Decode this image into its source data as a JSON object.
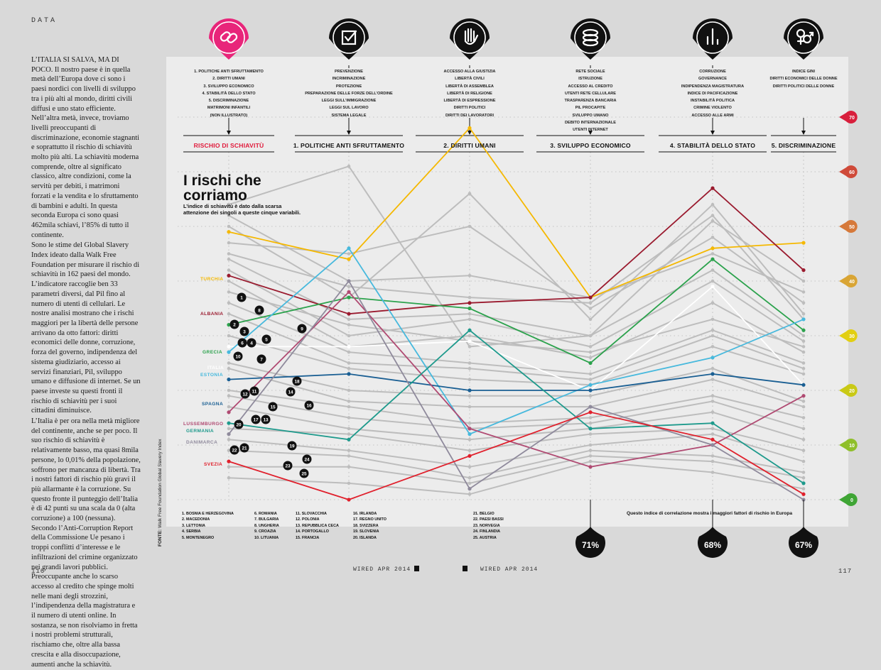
{
  "page": {
    "section_tag": "DATA",
    "page_left": "116",
    "page_right": "117",
    "footer_left": "WIRED APR 2014",
    "footer_right": "WIRED APR 2014",
    "source_label": "FONTE:",
    "source_text": "Walk Free Foundation Global Slavery Index"
  },
  "sidebar": {
    "paragraphs": [
      "L’ITALIA SI SALVA, MA DI POCO. Il nostro paese è in quella metà dell’Europa dove ci sono i paesi nordici con livelli di sviluppo tra i più alti al mondo, diritti civili diffusi e uno stato efficiente. Nell’altra metà, invece, troviamo livelli preoccupanti di discriminazione, economie stagnanti e soprattutto il rischio di schiavitù molto più alti. La schiavitù moderna comprende, oltre al significato classico, altre condizioni, come la servitù per debiti, i matrimoni forzati e la vendita e lo sfruttamento di bambini e adulti. In questa seconda Europa ci sono quasi 462mila schiavi, l’85% di tutto il continente.",
      "Sono le stime del Global Slavery Index ideato dalla Walk Free Foundation per misurare il rischio di schiavitù in 162 paesi del mondo. L’indicatore raccoglie ben 33 parametri diversi, dal Pil fino al numero di utenti di cellulari. Le nostre analisi mostrano che i rischi maggiori per la libertà delle persone arrivano da otto fattori: diritti economici delle donne, corruzione, forza del governo, indipendenza del sistema giudiziario, accesso ai servizi finanziari, Pil, sviluppo umano e diffusione di internet. Se un paese investe su questi fronti il rischio di schiavitù per i suoi cittadini diminuisce.",
      "L’Italia è per ora nella metà migliore del continente, anche se per poco. Il suo rischio di schiavitù è relativamente basso, ma quasi 8mila persone, lo 0,01% della popolazione, soffrono per mancanza di libertà. Tra i nostri fattori di rischio più gravi il più allarmante è la corruzione. Su questo fronte il punteggio dell’Italia è di 42 punti su una scala da 0 (alta corruzione) a 100 (nessuna). Secondo l’Anti-Corruption Report della Commissione Ue pesano i troppi conflitti d’interesse e le infiltrazioni del crimine organizzato nei grandi lavori pubblici. Preoccupante anche lo scarso accesso al credito che spinge molti nelle mani degli strozzini, l’indipendenza della magistratura e il numero di utenti online. In sostanza, se non risolviamo in fretta i nostri problemi strutturali, rischiamo che, oltre alla bassa crescita e alla disoccupazione, aumenti anche la schiavitù."
    ]
  },
  "chart_data": {
    "type": "line",
    "title": "I rischi che corriamo",
    "subtitle": "L’indice di schiavitù è dato dalla scarsa attenzione dei singoli a queste cinque variabili.",
    "note": "Questo indice di correlazione mostra i maggiori fattori di rischio in Europa",
    "ylim": [
      0,
      70
    ],
    "y_ticks": [
      "0",
      "10",
      "20",
      "30",
      "40",
      "50",
      "60",
      "70"
    ],
    "y_tick_colors": [
      "#3fa535",
      "#8fbf2a",
      "#c9c916",
      "#e2cf12",
      "#d9a535",
      "#d6793a",
      "#cf4a39",
      "#d81f3c"
    ],
    "categories": [
      "RISCHIO DI SCHIAVITÙ",
      "1. POLITICHE ANTI SFRUTTAMENTO",
      "2. DIRITTI UMANI",
      "3. SVILUPPO ECONOMICO",
      "4. STABILITÀ DELLO STATO",
      "5. DISCRIMINAZIONE"
    ],
    "factor_lists": [
      [
        "1. POLITICHE ANTI SFRUTTAMENTO",
        "2. DIRITTI UMANI",
        "3. SVILUPPO ECONOMICO",
        "4. STABILITÀ DELLO STATO",
        "5. DISCRIMINAZIONE",
        "MATRIMONI INFANTILI",
        "(NON ILLUSTRATO)"
      ],
      [
        "PREVENZIONE",
        "INCRIMINAZIONE",
        "PROTEZIONE",
        "PREPARAZIONE DELLE FORZE DELL’ORDINE",
        "LEGGI SULL’IMMIGRAZIONE",
        "LEGGI SUL LAVORO",
        "SISTEMA LEGALE"
      ],
      [
        "ACCESSO ALLA GIUSTIZIA",
        "LIBERTÀ CIVILI",
        "LIBERTÀ DI ASSEMBLEA",
        "LIBERTÀ DI RELIGIONE",
        "LIBERTÀ DI ESPRESSIONE",
        "DIRITTI POLITICI",
        "DIRITTI DEI LAVORATORI"
      ],
      [
        "RETE SOCIALE",
        "ISTRUZIONE",
        "ACCESSO AL CREDITO",
        "UTENTI RETE CELLULARE",
        "TRASPARENZA BANCARIA",
        "PIL PROCAPITE",
        "SVILUPPO UMANO",
        "DEBITO INTERNAZIONALE",
        "UTENTI INTERNET"
      ],
      [
        "CORRUZIONE",
        "GOVERNANCE",
        "INDIPENDENZA MAGISTRATURA",
        "INDICE DI PACIFICAZIONE",
        "INSTABILITÀ POLITICA",
        "CRIMINE VIOLENTO",
        "ACCESSO ALLE ARMI"
      ],
      [
        "INDICE GINI",
        "DIRITTI ECONOMICI DELLE DONNE",
        "DIRITTI POLITICI DELLE DONNE"
      ]
    ],
    "icons": [
      "chain-link-icon",
      "checkbox-icon",
      "raised-hand-icon",
      "coin-stack-icon",
      "bar-chart-icon",
      "gender-symbols-icon"
    ],
    "correlations": [
      {
        "category_index": 3,
        "value": "71%"
      },
      {
        "category_index": 4,
        "value": "68%"
      },
      {
        "category_index": 5,
        "value": "67%"
      }
    ],
    "series": [
      {
        "name": "TURCHIA",
        "color": "#f5b800",
        "values": [
          49,
          44,
          68,
          37,
          46,
          47
        ]
      },
      {
        "name": "ALBANIA",
        "color": "#9a1a2e",
        "values": [
          41,
          34,
          36,
          37,
          57,
          42
        ]
      },
      {
        "name": "GRECIA",
        "color": "#2ba24c",
        "values": [
          32,
          37,
          35,
          25,
          44,
          31
        ]
      },
      {
        "name": "ITALIA",
        "color": "#ffffff",
        "values": [
          28,
          28,
          29,
          20,
          39,
          21
        ]
      },
      {
        "name": "ESTONIA",
        "color": "#47b9dd",
        "values": [
          27,
          46,
          12,
          21,
          26,
          33
        ]
      },
      {
        "name": "SPAGNA",
        "color": "#1a5f93",
        "values": [
          22,
          23,
          20,
          20,
          23,
          21
        ]
      },
      {
        "name": "LUSSEMBURGO",
        "color": "#b04a72",
        "values": [
          16,
          38,
          13,
          6,
          10,
          19
        ]
      },
      {
        "name": "GERMANIA",
        "color": "#1e9a8c",
        "values": [
          14,
          11,
          31,
          13,
          14,
          3
        ]
      },
      {
        "name": "DANIMARCA",
        "color": "#8f8a9c",
        "values": [
          12,
          40,
          2,
          17,
          10,
          0
        ]
      },
      {
        "name": "SVEZIA",
        "color": "#e0202c",
        "values": [
          7,
          0,
          8,
          16,
          11,
          1
        ]
      }
    ],
    "other_series": [
      [
        54,
        61,
        28,
        30,
        51,
        40
      ],
      [
        52,
        40,
        41,
        37,
        45,
        38
      ],
      [
        50,
        37,
        56,
        33,
        54,
        34
      ],
      [
        47,
        45,
        50,
        35,
        48,
        36
      ],
      [
        45,
        39,
        37,
        36,
        52,
        33
      ],
      [
        44,
        33,
        34,
        30,
        42,
        30
      ],
      [
        42,
        30,
        33,
        28,
        40,
        29
      ],
      [
        40,
        28,
        30,
        26,
        36,
        27
      ],
      [
        38,
        32,
        29,
        27,
        33,
        28
      ],
      [
        36,
        27,
        25,
        23,
        31,
        25
      ],
      [
        34,
        25,
        24,
        22,
        30,
        24
      ],
      [
        30,
        24,
        22,
        21,
        28,
        23
      ],
      [
        25,
        20,
        19,
        19,
        24,
        18
      ],
      [
        24,
        18,
        17,
        17,
        22,
        17
      ],
      [
        20,
        17,
        14,
        15,
        19,
        15
      ],
      [
        19,
        15,
        13,
        14,
        18,
        13
      ],
      [
        17,
        13,
        11,
        13,
        16,
        11
      ],
      [
        13,
        12,
        9,
        12,
        13,
        9
      ],
      [
        11,
        9,
        6,
        10,
        12,
        7
      ],
      [
        9,
        8,
        4,
        9,
        8,
        5
      ],
      [
        6,
        6,
        3,
        8,
        7,
        4
      ],
      [
        4,
        3,
        1,
        7,
        5,
        2
      ]
    ],
    "markers": [
      {
        "n": "1",
        "col": 0,
        "value": 45.5
      },
      {
        "n": "8",
        "col": 0,
        "value": 42
      },
      {
        "n": "2",
        "col": 0,
        "value": 39
      },
      {
        "n": "3",
        "col": 0,
        "value": 37
      },
      {
        "n": "5",
        "col": 0,
        "value": 35
      },
      {
        "n": "6",
        "col": 0,
        "value": 34
      },
      {
        "n": "4",
        "col": 0,
        "value": 34
      },
      {
        "n": "9",
        "col": 0,
        "value": 38
      },
      {
        "n": "10",
        "col": 0,
        "value": 31.5
      },
      {
        "n": "7",
        "col": 0,
        "value": 30.5
      },
      {
        "n": "18",
        "col": 0,
        "value": 27
      },
      {
        "n": "12",
        "col": 0,
        "value": 24.5
      },
      {
        "n": "11",
        "col": 0,
        "value": 24.5
      },
      {
        "n": "14",
        "col": 0,
        "value": 24.5
      },
      {
        "n": "15",
        "col": 0,
        "value": 21
      },
      {
        "n": "16",
        "col": 0,
        "value": 21
      },
      {
        "n": "17",
        "col": 0,
        "value": 18
      },
      {
        "n": "13",
        "col": 0,
        "value": 18
      },
      {
        "n": "20",
        "col": 0,
        "value": 17.3
      },
      {
        "n": "19",
        "col": 0,
        "value": 12.5
      },
      {
        "n": "22",
        "col": 0,
        "value": 11.6
      },
      {
        "n": "21",
        "col": 0,
        "value": 12
      },
      {
        "n": "24",
        "col": 0,
        "value": 8.2
      },
      {
        "n": "23",
        "col": 0,
        "value": 6.4
      },
      {
        "n": "25",
        "col": 0,
        "value": 4.6
      }
    ],
    "marker_offsets_px": [],
    "legend_columns": [
      [
        "1. BOSNIA E HERZEGOVINA",
        "2. MACEDONIA",
        "3. LETTONIA",
        "4. SERBIA",
        "5. MONTENEGRO"
      ],
      [
        "6. ROMANIA",
        "7. BULGARIA",
        "8. UNGHERIA",
        "9. CROAZIA",
        "10. LITUANIA"
      ],
      [
        "11. SLOVACCHIA",
        "12. POLONIA",
        "13. REPUBBLICA CECA",
        "14. PORTOGALLO",
        "15. FRANCIA"
      ],
      [
        "16. IRLANDA",
        "17. REGNO UNITO",
        "18. SVIZZERA",
        "19. SLOVENIA",
        "20. ISLANDA"
      ],
      [
        "21. BELGIO",
        "22. PAESI BASSI",
        "23. NORVEGIA",
        "24. FINLANDIA",
        "25. AUSTRIA"
      ]
    ]
  }
}
